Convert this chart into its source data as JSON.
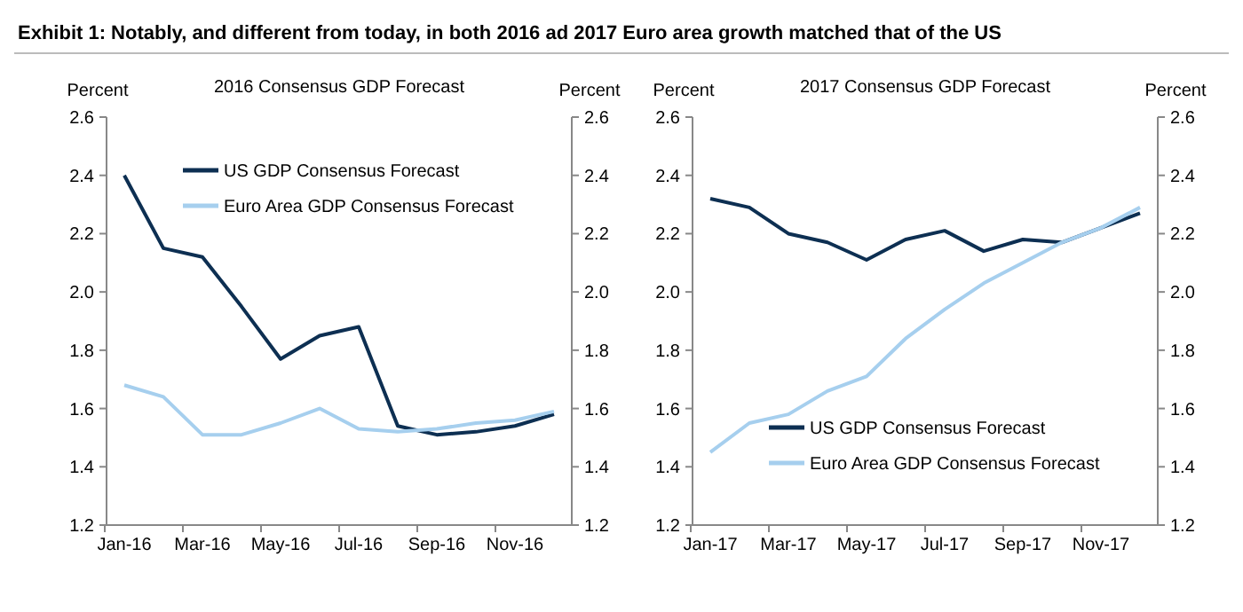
{
  "chart_data": [
    {
      "type": "line",
      "title": "2016 Consensus GDP Forecast",
      "ylabel": "Percent",
      "y2label": "Percent",
      "annotations": [
        "Exhibit 1: Notably, and different from today, in both 2016 ad 2017 Euro area growth matched that of the US"
      ],
      "categories": [
        "Jan-16",
        null,
        "Mar-16",
        null,
        "May-16",
        null,
        "Jul-16",
        null,
        "Sep-16",
        null,
        "Nov-16",
        null
      ],
      "series": [
        {
          "name": "US GDP Consensus Forecast",
          "color": "#0d2f52",
          "values": [
            2.4,
            2.15,
            2.12,
            1.95,
            1.77,
            1.85,
            1.88,
            1.54,
            1.51,
            1.52,
            1.54,
            1.58
          ]
        },
        {
          "name": "Euro Area GDP Consensus Forecast",
          "color": "#a6cfee",
          "values": [
            1.68,
            1.64,
            1.51,
            1.51,
            1.55,
            1.6,
            1.53,
            1.52,
            1.53,
            1.55,
            1.56,
            1.59
          ]
        }
      ],
      "ylim": [
        1.2,
        2.6
      ],
      "yticks": [
        1.2,
        1.4,
        1.6,
        1.8,
        {
          "value": 2,
          "label": "2.0"
        },
        2.2,
        2.4,
        2.6
      ],
      "y2lim": [
        1.2,
        2.6
      ],
      "y2ticks": [
        1.2,
        1.4,
        1.6,
        1.8,
        {
          "value": 2,
          "label": "2.0"
        },
        2.2,
        2.4,
        2.6
      ],
      "grid": false,
      "legend": "top",
      "line_style": "solid"
    },
    {
      "type": "line",
      "title": "2017 Consensus GDP Forecast",
      "ylabel": "Percent",
      "y2label": "Percent",
      "categories": [
        "Jan-17",
        null,
        "Mar-17",
        null,
        "May-17",
        null,
        "Jul-17",
        null,
        "Sep-17",
        null,
        "Nov-17",
        null
      ],
      "series": [
        {
          "name": "US GDP Consensus Forecast",
          "color": "#0d2f52",
          "values": [
            2.32,
            2.29,
            2.2,
            2.17,
            2.11,
            2.18,
            2.21,
            2.14,
            2.18,
            2.17,
            2.22,
            2.27
          ]
        },
        {
          "name": "Euro Area GDP Consensus Forecast",
          "color": "#a6cfee",
          "values": [
            1.45,
            1.55,
            1.58,
            1.66,
            1.71,
            1.84,
            1.94,
            2.03,
            2.1,
            2.17,
            2.22,
            2.29
          ]
        }
      ],
      "ylim": [
        1.2,
        2.6
      ],
      "yticks": [
        1.2,
        1.4,
        1.6,
        1.8,
        {
          "value": 2,
          "label": "2.0"
        },
        2.2,
        2.4,
        2.6
      ],
      "y2lim": [
        1.2,
        2.6
      ],
      "y2ticks": [
        1.2,
        1.4,
        1.6,
        1.8,
        {
          "value": 2,
          "label": "2.0"
        },
        2.2,
        2.4,
        2.6
      ],
      "grid": false,
      "legend": "bottom",
      "line_style": "solid"
    }
  ]
}
